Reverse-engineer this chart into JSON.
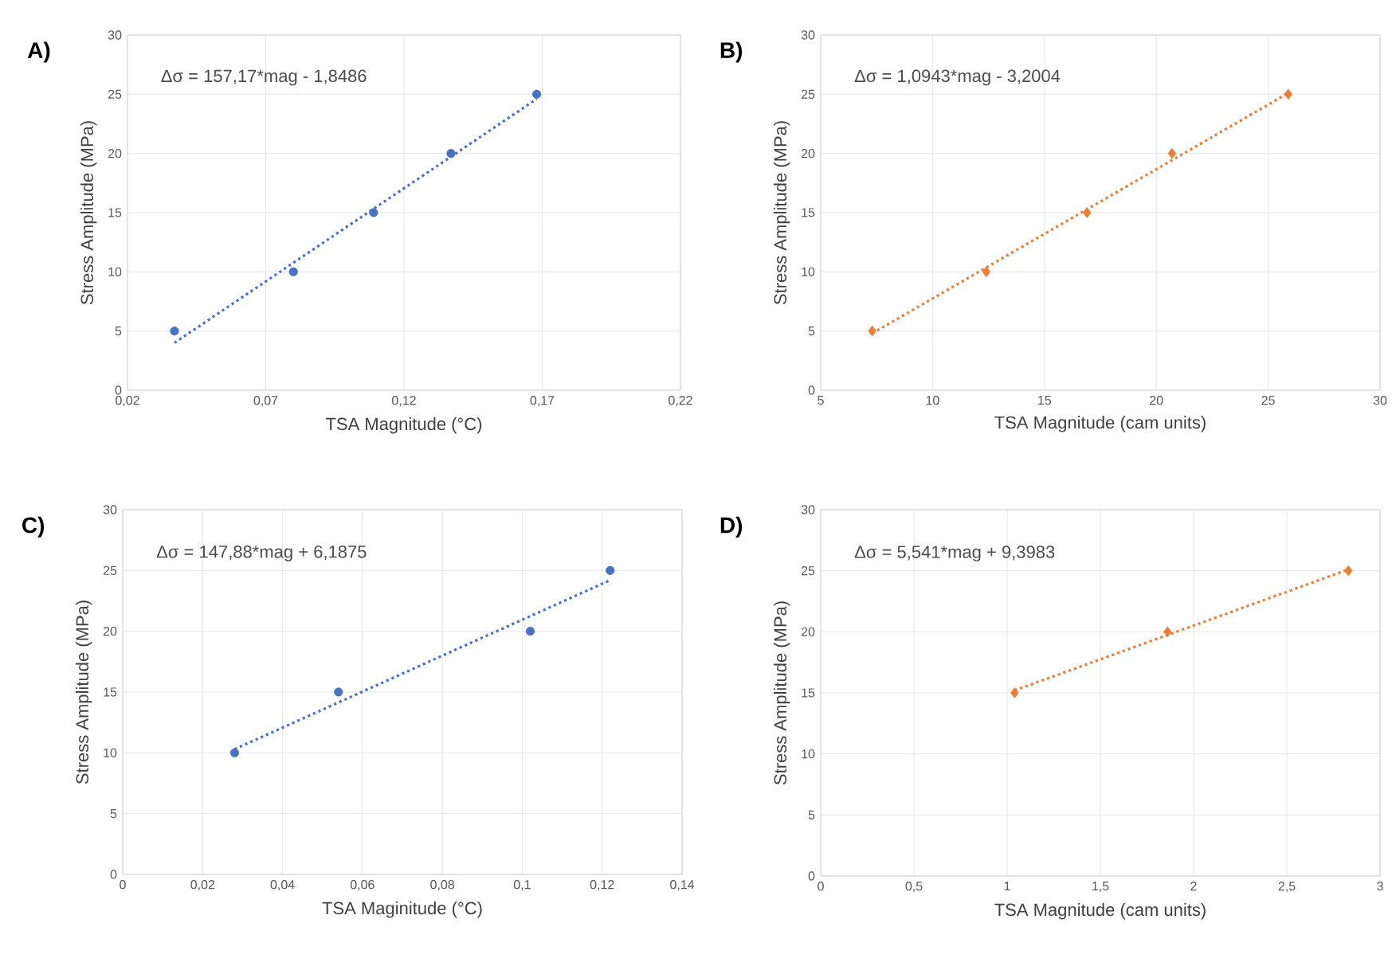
{
  "chart_data": [
    {
      "type": "scatter",
      "title": "A)",
      "xlabel": "TSA Magnitude (°C)",
      "ylabel": "Stress Amplitude (MPa)",
      "annotations": [
        "Δσ = 157,17*mag - 1,8486"
      ],
      "xlim": [
        0.02,
        0.22
      ],
      "xticks": [
        {
          "value": 0.02,
          "label": "0,02"
        },
        {
          "value": 0.07,
          "label": "0,07"
        },
        {
          "value": 0.12,
          "label": "0,12"
        },
        {
          "value": 0.17,
          "label": "0,17"
        },
        {
          "value": 0.22,
          "label": "0,22"
        }
      ],
      "ylim": [
        0,
        30
      ],
      "yticks": [
        0,
        5,
        10,
        15,
        20,
        25,
        30
      ],
      "grid": true,
      "marker": "circle",
      "series": [
        {
          "color": "#4472c4",
          "x": [
            0.037,
            0.08,
            0.109,
            0.137,
            0.168
          ],
          "values": [
            5,
            10,
            15,
            20,
            25
          ]
        },
        {
          "type": "line",
          "line_style": "dotted",
          "marker": "none",
          "color": "#4472c4",
          "x": [
            0.037,
            0.168
          ],
          "values": [
            4.0,
            24.6
          ]
        }
      ]
    },
    {
      "type": "scatter",
      "title": "B)",
      "xlabel": "TSA Magnitude (cam units)",
      "ylabel": "Stress Amplitude (MPa)",
      "annotations": [
        "Δσ = 1,0943*mag - 3,2004"
      ],
      "xlim": [
        5,
        30
      ],
      "xticks": [
        5,
        10,
        15,
        20,
        25,
        30
      ],
      "ylim": [
        0,
        30
      ],
      "yticks": [
        0,
        5,
        10,
        15,
        20,
        25,
        30
      ],
      "grid": true,
      "marker": "diamond",
      "series": [
        {
          "color": "#ed7d31",
          "x": [
            7.3,
            12.4,
            16.9,
            20.7,
            25.9
          ],
          "values": [
            5,
            10,
            15,
            20,
            25
          ]
        },
        {
          "type": "line",
          "line_style": "dotted",
          "marker": "none",
          "color": "#ed7d31",
          "x": [
            7.3,
            25.9
          ],
          "values": [
            4.8,
            25.1
          ]
        }
      ]
    },
    {
      "type": "scatter",
      "title": "C)",
      "xlabel": "TSA Maginitude (°C)",
      "ylabel": "Stress Amplitude (MPa)",
      "annotations": [
        "Δσ = 147,88*mag + 6,1875"
      ],
      "xlim": [
        0,
        0.14
      ],
      "xticks": [
        0,
        {
          "value": 0.02,
          "label": "0,02"
        },
        {
          "value": 0.04,
          "label": "0,04"
        },
        {
          "value": 0.06,
          "label": "0,06"
        },
        {
          "value": 0.08,
          "label": "0,08"
        },
        {
          "value": 0.1,
          "label": "0,1"
        },
        {
          "value": 0.12,
          "label": "0,12"
        },
        {
          "value": 0.14,
          "label": "0,14"
        }
      ],
      "ylim": [
        0,
        30
      ],
      "yticks": [
        0,
        5,
        10,
        15,
        20,
        25,
        30
      ],
      "grid": true,
      "marker": "circle",
      "series": [
        {
          "color": "#4472c4",
          "x": [
            0.028,
            0.054,
            0.102,
            0.122
          ],
          "values": [
            10,
            15,
            20,
            25
          ]
        },
        {
          "type": "line",
          "line_style": "dotted",
          "marker": "none",
          "color": "#4472c4",
          "x": [
            0.028,
            0.122
          ],
          "values": [
            10.3,
            24.2
          ]
        }
      ]
    },
    {
      "type": "scatter",
      "title": "D)",
      "xlabel": "TSA Magnitude (cam units)",
      "ylabel": "Stress Amplitude (MPa)",
      "annotations": [
        "Δσ = 5,541*mag + 9,3983"
      ],
      "xlim": [
        0,
        3
      ],
      "xticks": [
        0,
        {
          "value": 0.5,
          "label": "0,5"
        },
        1,
        {
          "value": 1.5,
          "label": "1,5"
        },
        2,
        {
          "value": 2.5,
          "label": "2,5"
        },
        3
      ],
      "ylim": [
        0,
        30
      ],
      "yticks": [
        0,
        5,
        10,
        15,
        20,
        25,
        30
      ],
      "grid": true,
      "marker": "diamond",
      "series": [
        {
          "color": "#ed7d31",
          "x": [
            1.04,
            1.86,
            2.83
          ],
          "values": [
            15,
            20,
            25
          ]
        },
        {
          "type": "line",
          "line_style": "dotted",
          "marker": "none",
          "color": "#ed7d31",
          "x": [
            1.04,
            2.83
          ],
          "values": [
            15.2,
            25.1
          ]
        }
      ]
    }
  ]
}
